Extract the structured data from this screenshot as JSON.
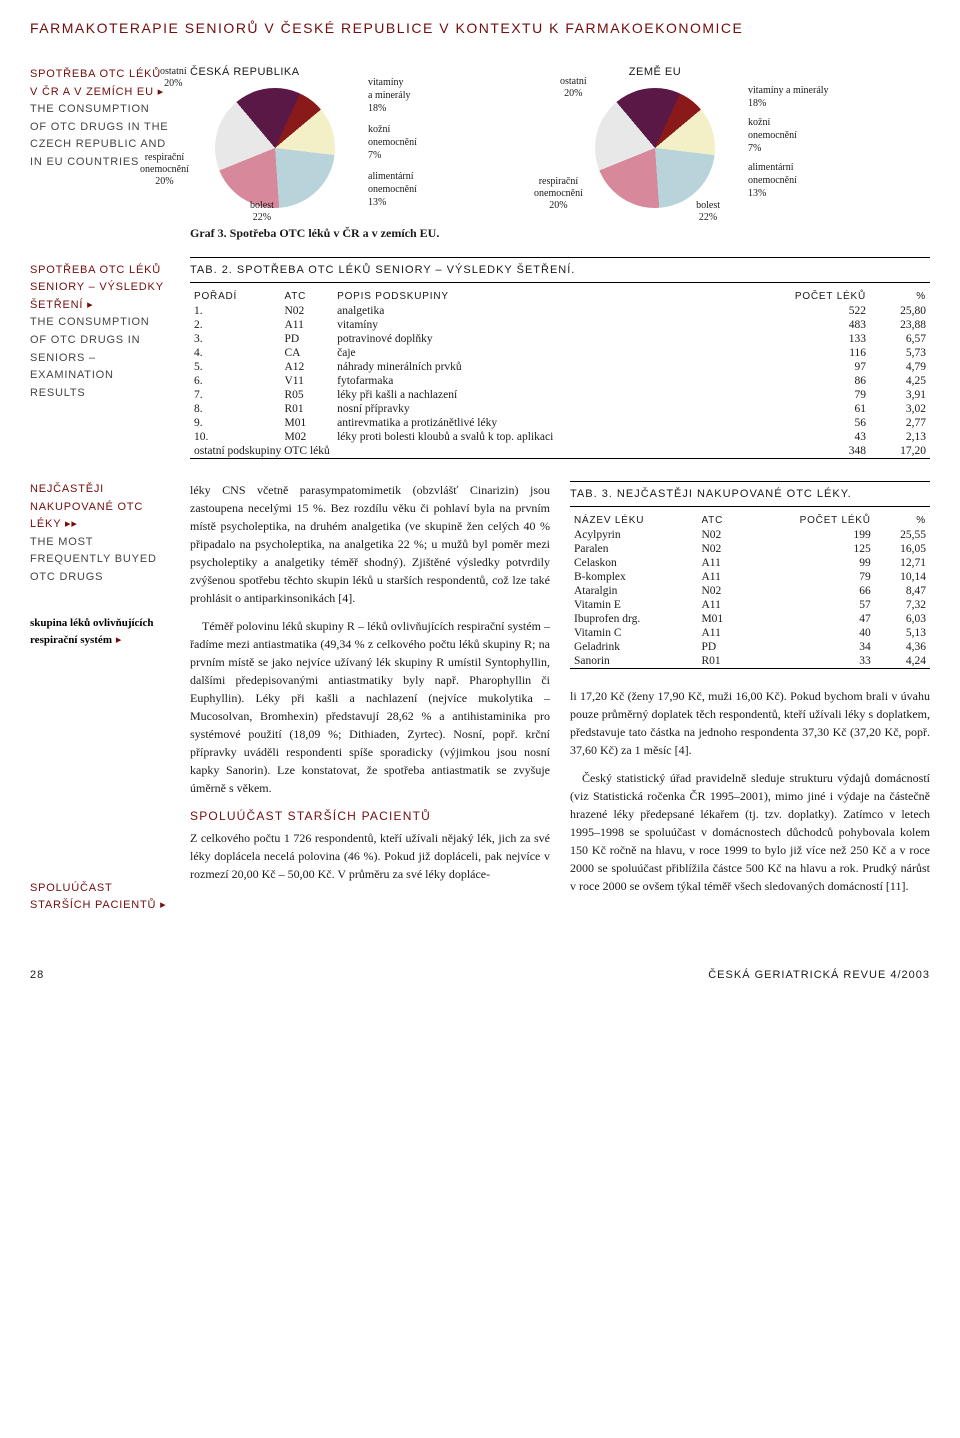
{
  "page_title": "FARMAKOTERAPIE SENIORŮ V ČESKÉ REPUBLICE V KONTEXTU K FARMAKOEKONOMICE",
  "sidebar": {
    "block1": {
      "cz": "SPOTŘEBA OTC LÉKŮ V ČR A V ZEMÍCH EU",
      "en": "THE CONSUMPTION OF OTC DRUGS IN THE CZECH REPUBLIC AND IN EU COUNTRIES"
    },
    "block2": {
      "cz": "SPOTŘEBA OTC LÉKŮ SENIORY – VÝSLEDKY ŠETŘENÍ",
      "en": "THE CONSUMPTION OF OTC DRUGS IN SENIORS – EXAMINATION RESULTS"
    },
    "block3": {
      "cz": "NEJČASTĚJI NAKUPOVANÉ OTC LÉKY",
      "en": "THE MOST FREQUENTLY BUYED OTC DRUGS"
    },
    "block4": {
      "black": "skupina léků ovlivňujících respirační systém"
    },
    "block5": {
      "cz": "SPOLUÚČAST STARŠÍCH PACIENTŮ"
    }
  },
  "chart_left": {
    "title": "ČESKÁ REPUBLIKA",
    "slices": [
      {
        "label": "vitamíny\na minerály\n18%",
        "value": 18,
        "color": "#5a1846"
      },
      {
        "label": "kožní\nonemocnění\n7%",
        "value": 7,
        "color": "#8a1a1a"
      },
      {
        "label": "alimentární\nonemocnění\n13%",
        "value": 13,
        "color": "#f3efc6"
      },
      {
        "label": "bolest\n22%",
        "value": 22,
        "color": "#b9d3da"
      },
      {
        "label": "respirační\nonemocnění\n20%",
        "value": 20,
        "color": "#d7899b"
      },
      {
        "label": "ostatní\n20%",
        "value": 20,
        "color": "#e8e8e8"
      }
    ]
  },
  "chart_right": {
    "title": "ZEMĚ EU",
    "slices": [
      {
        "label": "vitamíny a minerály\n18%",
        "value": 18,
        "color": "#5a1846"
      },
      {
        "label": "kožní\nonemocnění\n7%",
        "value": 7,
        "color": "#8a1a1a"
      },
      {
        "label": "alimentární\nonemocnění\n13%",
        "value": 13,
        "color": "#f3efc6"
      },
      {
        "label": "bolest\n22%",
        "value": 22,
        "color": "#b9d3da"
      },
      {
        "label": "respirační\nonemocnění\n20%",
        "value": 20,
        "color": "#d7899b"
      },
      {
        "label": "ostatní\n20%",
        "value": 20,
        "color": "#e8e8e8"
      }
    ]
  },
  "chart_caption": "Graf 3. Spotřeba OTC léků v ČR a v zemích EU.",
  "table2": {
    "title": "TAB. 2. SPOTŘEBA OTC LÉKŮ SENIORY – VÝSLEDKY ŠETŘENÍ.",
    "cols": [
      "POŘADÍ",
      "ATC",
      "POPIS PODSKUPINY",
      "POČET LÉKŮ",
      "%"
    ],
    "rows": [
      [
        "1.",
        "N02",
        "analgetika",
        "522",
        "25,80"
      ],
      [
        "2.",
        "A11",
        "vitamíny",
        "483",
        "23,88"
      ],
      [
        "3.",
        "PD",
        "potravinové doplňky",
        "133",
        "6,57"
      ],
      [
        "4.",
        "CA",
        "čaje",
        "116",
        "5,73"
      ],
      [
        "5.",
        "A12",
        "náhrady minerálních prvků",
        "97",
        "4,79"
      ],
      [
        "6.",
        "V11",
        "fytofarmaka",
        "86",
        "4,25"
      ],
      [
        "7.",
        "R05",
        "léky při kašli a nachlazení",
        "79",
        "3,91"
      ],
      [
        "8.",
        "R01",
        "nosní přípravky",
        "61",
        "3,02"
      ],
      [
        "9.",
        "M01",
        "antirevmatika a protizánětlivé léky",
        "56",
        "2,77"
      ],
      [
        "10.",
        "M02",
        "léky proti bolesti kloubů a svalů k top. aplikaci",
        "43",
        "2,13"
      ]
    ],
    "footer_row": [
      "ostatní podskupiny OTC léků",
      "",
      "",
      "348",
      "17,20"
    ]
  },
  "table3": {
    "title": "TAB. 3. NEJČASTĚJI NAKUPOVANÉ OTC LÉKY.",
    "cols": [
      "NÁZEV LÉKU",
      "ATC",
      "POČET LÉKŮ",
      "%"
    ],
    "rows": [
      [
        "Acylpyrin",
        "N02",
        "199",
        "25,55"
      ],
      [
        "Paralen",
        "N02",
        "125",
        "16,05"
      ],
      [
        "Celaskon",
        "A11",
        "99",
        "12,71"
      ],
      [
        "B-komplex",
        "A11",
        "79",
        "10,14"
      ],
      [
        "Ataralgin",
        "N02",
        "66",
        "8,47"
      ],
      [
        "Vitamin E",
        "A11",
        "57",
        "7,32"
      ],
      [
        "Ibuprofen drg.",
        "M01",
        "47",
        "6,03"
      ],
      [
        "Vitamin C",
        "A11",
        "40",
        "5,13"
      ],
      [
        "Geladrink",
        "PD",
        "34",
        "4,36"
      ],
      [
        "Sanorin",
        "R01",
        "33",
        "4,24"
      ]
    ]
  },
  "body": {
    "p1": "léky CNS včetně parasympatomimetik (obzvlášť Cinarizin) jsou zastoupena necelými 15 %. Bez rozdílu věku či pohlaví byla na prvním místě psycholeptika, na druhém analgetika (ve skupině žen celých 40 % připadalo na psycholeptika, na analgetika 22 %; u mužů byl poměr mezi psycholeptiky a analgetiky téměř shodný). Zjištěné výsledky potvrdily zvýšenou spotřebu těchto skupin léků u starších respondentů, což lze také prohlásit o antiparkinsonikách [4].",
    "p2": "Téměř polovinu léků skupiny R – léků ovlivňujících respirační systém – řadíme mezi antiastmatika (49,34 % z celkového počtu léků skupiny R; na prvním místě se jako nejvíce užívaný lék skupiny R umístil Syntophyllin, dalšími předepisovanými antiastmatiky byly např. Pharophyllin či Euphyllin). Léky při kašli a nachlazení (nejvíce mukolytika – Mucosolvan, Bromhexin) představují 28,62 % a antihistaminika pro systémové použití (18,09 %; Dithiaden, Zyrtec). Nosní, popř. krční přípravky uváděli respondenti spíše sporadicky (výjimkou jsou nosní kapky Sanorin). Lze konstatovat, že spotřeba antiastmatik se zvyšuje úměrně s věkem.",
    "h2": "SPOLUÚČAST STARŠÍCH PACIENTŮ",
    "p3": "Z celkového počtu 1 726 respondentů, kteří užívali nějaký lék, jich za své léky doplácela necelá polovina (46 %). Pokud již dopláceli, pak nejvíce v rozmezí 20,00 Kč – 50,00 Kč. V průměru za své léky dopláce-",
    "p4": "li 17,20 Kč (ženy 17,90 Kč, muži 16,00 Kč). Pokud bychom brali v úvahu pouze průměrný doplatek těch respondentů, kteří užívali léky s doplatkem, představuje tato částka na jednoho respondenta 37,30 Kč (37,20 Kč, popř. 37,60 Kč) za 1 měsíc [4].",
    "p5": "Český statistický úřad pravidelně sleduje strukturu výdajů domácností (viz Statistická ročenka ČR 1995–2001), mimo jiné i výdaje na částečně hrazené léky předepsané lékařem (tj. tzv. doplatky). Zatímco v letech 1995–1998 se spoluúčast v domácnostech důchodců pohybovala kolem 150 Kč ročně na hlavu, v roce 1999 to bylo již více než 250 Kč a v roce 2000 se spoluúčast přiblížila částce 500 Kč na hlavu a rok. Prudký nárůst v roce 2000 se ovšem týkal téměř všech sledovaných domácností [11]."
  },
  "footer": {
    "page": "28",
    "journal": "ČESKÁ GERIATRICKÁ REVUE 4/2003"
  }
}
